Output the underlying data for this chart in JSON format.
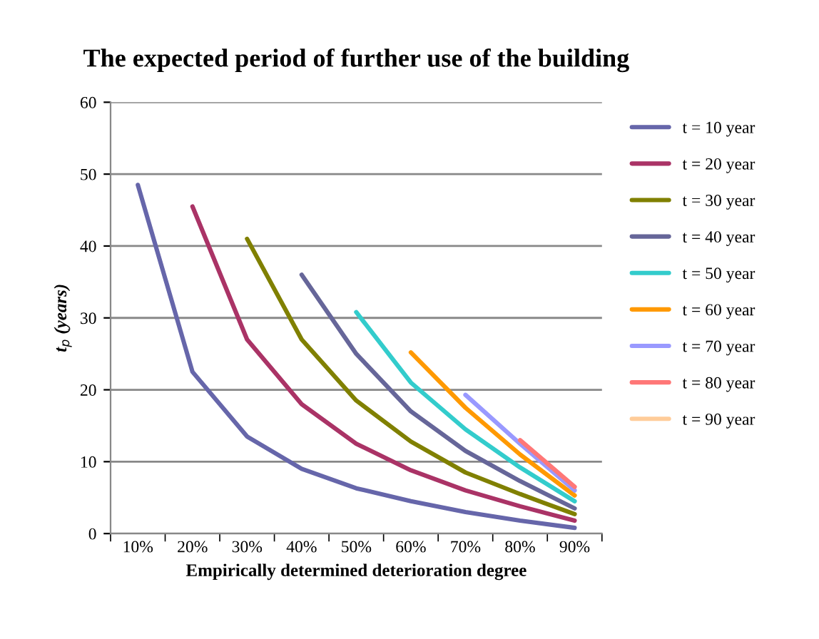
{
  "chart_data": {
    "type": "line",
    "title": "The expected period of further use of the building",
    "xlabel": "Empirically determined deterioration degree",
    "ylabel": "t$_{p}$ (years)",
    "categories": [
      "10%",
      "20%",
      "30%",
      "40%",
      "50%",
      "60%",
      "70%",
      "80%",
      "90%"
    ],
    "ylim": [
      0,
      60
    ],
    "yticks": [
      0,
      10,
      20,
      30,
      40,
      50,
      60
    ],
    "grid": "y",
    "legend": "right",
    "marker": "none",
    "line_style": "solid",
    "series": [
      {
        "name": "t = 10 year",
        "color": "#6666aa",
        "values": [
          48.5,
          22.5,
          13.5,
          9,
          6.3,
          4.5,
          3,
          1.8,
          0.8
        ]
      },
      {
        "name": "t = 20 year",
        "color": "#aa3366",
        "values": [
          null,
          45.5,
          27,
          18,
          12.5,
          8.8,
          6,
          3.8,
          1.8
        ]
      },
      {
        "name": "t = 30 year",
        "color": "#808000",
        "values": [
          null,
          null,
          41,
          27,
          18.5,
          12.8,
          8.5,
          5.5,
          2.7
        ]
      },
      {
        "name": "t = 40 year",
        "color": "#666699",
        "values": [
          null,
          null,
          null,
          36,
          25,
          17,
          11.5,
          7.3,
          3.5
        ]
      },
      {
        "name": "t = 50 year",
        "color": "#33cccc",
        "values": [
          null,
          null,
          null,
          null,
          30.8,
          21,
          14.5,
          9.2,
          4.5
        ]
      },
      {
        "name": "t = 60 year",
        "color": "#ff9900",
        "values": [
          null,
          null,
          null,
          null,
          null,
          25.2,
          17.5,
          11,
          5.3
        ]
      },
      {
        "name": "t = 70 year",
        "color": "#9999ff",
        "values": [
          null,
          null,
          null,
          null,
          null,
          null,
          19.3,
          12.5,
          6
        ]
      },
      {
        "name": "t = 80 year",
        "color": "#ff7777",
        "values": [
          null,
          null,
          null,
          null,
          null,
          null,
          null,
          13,
          6.5
        ]
      },
      {
        "name": "t = 90 year",
        "color": "#ffcc99",
        "values": [
          null,
          null,
          null,
          null,
          null,
          null,
          null,
          null,
          null
        ]
      }
    ]
  }
}
